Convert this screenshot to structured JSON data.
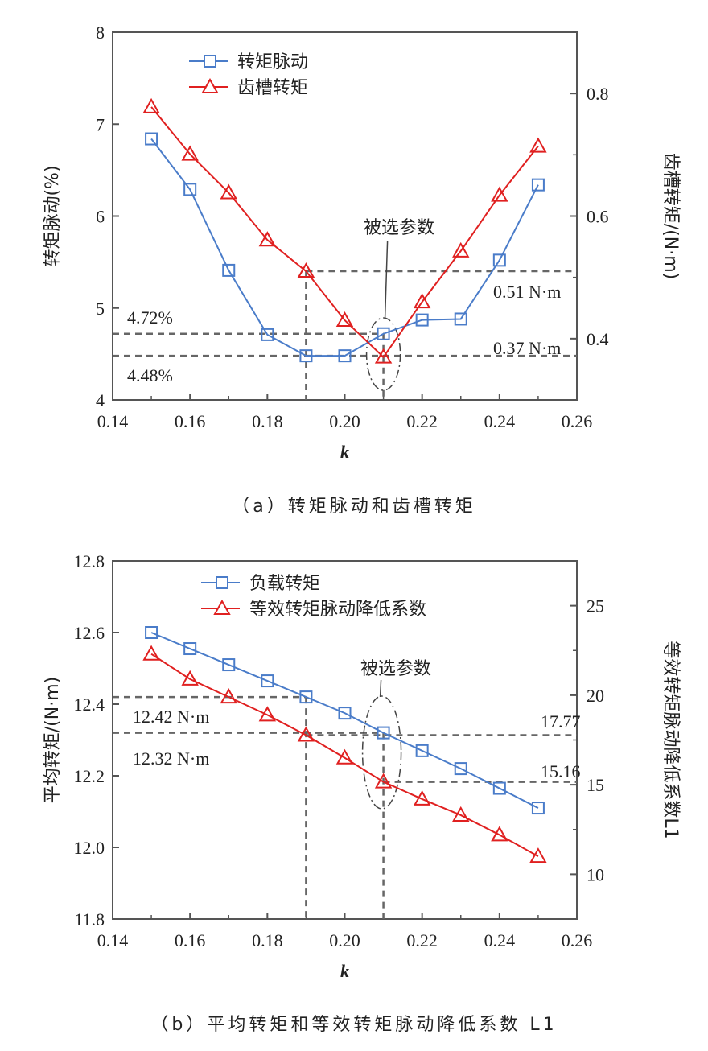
{
  "chart_data": [
    {
      "type": "line",
      "caption": "（a）转矩脉动和齿槽转矩",
      "xlabel": "k",
      "ylabel": "转矩脉动(%)",
      "y2label": "齿槽转矩/(N·m)",
      "xlim": [
        0.14,
        0.26
      ],
      "ylim": [
        4,
        8
      ],
      "y2lim": [
        0.3,
        0.9
      ],
      "xticks": [
        "0.14",
        "0.16",
        "0.18",
        "0.20",
        "0.22",
        "0.24",
        "0.26"
      ],
      "yticks": [
        "4",
        "5",
        "6",
        "7",
        "8"
      ],
      "y2ticks": [
        "0.4",
        "0.6",
        "0.8"
      ],
      "x": [
        0.15,
        0.16,
        0.17,
        0.18,
        0.19,
        0.2,
        0.21,
        0.22,
        0.23,
        0.24,
        0.25
      ],
      "series": [
        {
          "name": "转矩脉动",
          "axis": "left",
          "color": "#4a7cc9",
          "marker": "square",
          "values": [
            6.84,
            6.29,
            5.41,
            4.71,
            4.48,
            4.48,
            4.72,
            4.87,
            4.88,
            5.52,
            6.34
          ]
        },
        {
          "name": "齿槽转矩",
          "axis": "right",
          "color": "#e02020",
          "marker": "triangle",
          "values": [
            0.778,
            0.701,
            0.638,
            0.561,
            0.51,
            0.43,
            0.37,
            0.46,
            0.543,
            0.634,
            0.714
          ]
        }
      ],
      "annotations": {
        "selected": "被选参数",
        "left_a": "4.72%",
        "left_b": "4.48%",
        "right_a": "0.51 N·m",
        "right_b": "0.37 N·m"
      },
      "legend": "top-left",
      "grid": false
    },
    {
      "type": "line",
      "caption": "（b）平均转矩和等效转矩脉动降低系数 L1",
      "xlabel": "k",
      "ylabel": "平均转矩/(N·m)",
      "y2label": "等效转矩脉动降低系数L1",
      "xlim": [
        0.14,
        0.26
      ],
      "ylim": [
        11.8,
        12.8
      ],
      "y2lim": [
        7.5,
        27.5
      ],
      "xticks": [
        "0.14",
        "0.16",
        "0.18",
        "0.20",
        "0.22",
        "0.24",
        "0.26"
      ],
      "yticks": [
        "11.8",
        "12.0",
        "12.2",
        "12.4",
        "12.6",
        "12.8"
      ],
      "y2ticks": [
        "10",
        "15",
        "20",
        "25"
      ],
      "x": [
        0.15,
        0.16,
        0.17,
        0.18,
        0.19,
        0.2,
        0.21,
        0.22,
        0.23,
        0.24,
        0.25
      ],
      "series": [
        {
          "name": "负载转矩",
          "axis": "left",
          "color": "#4a7cc9",
          "marker": "square",
          "values": [
            12.6,
            12.555,
            12.51,
            12.465,
            12.42,
            12.375,
            12.32,
            12.27,
            12.22,
            12.165,
            12.11
          ]
        },
        {
          "name": "等效转矩脉动降低系数",
          "axis": "right",
          "color": "#e02020",
          "marker": "triangle",
          "values": [
            22.3,
            20.9,
            19.9,
            18.9,
            17.77,
            16.5,
            15.16,
            14.2,
            13.3,
            12.2,
            11.0
          ]
        }
      ],
      "annotations": {
        "selected": "被选参数",
        "left_a": "12.42 N·m",
        "left_b": "12.32 N·m",
        "right_a": "17.77",
        "right_b": "15.16"
      },
      "legend": "top-left",
      "grid": false
    }
  ]
}
